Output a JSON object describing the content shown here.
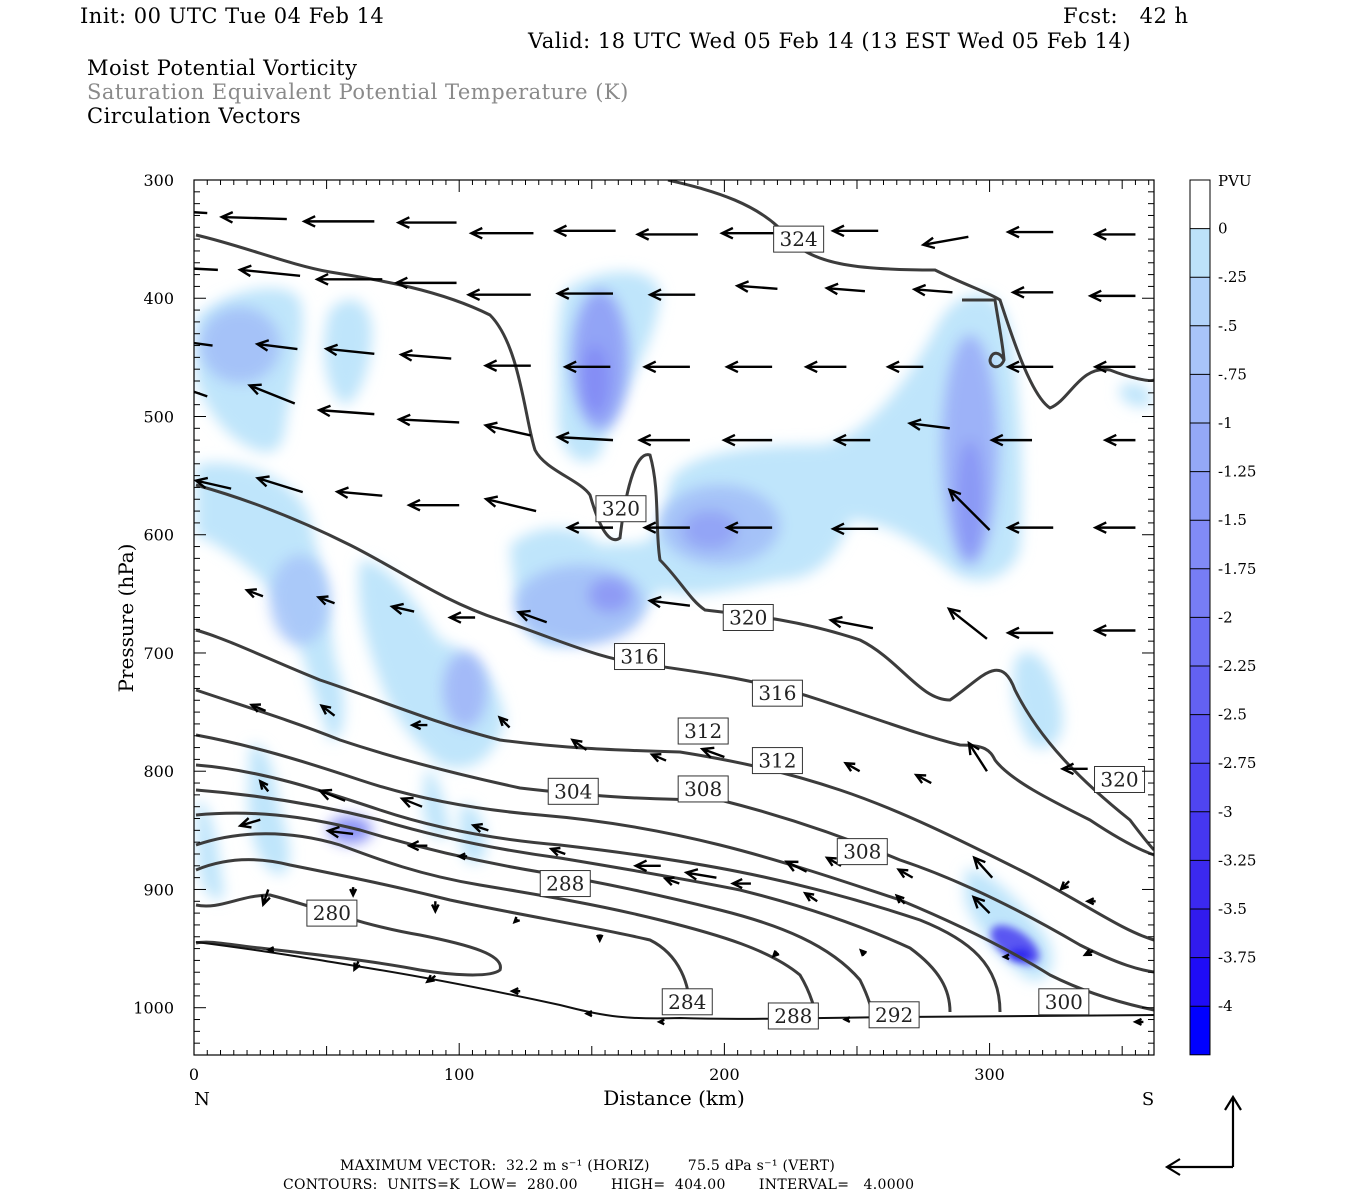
{
  "header": {
    "init": "Init: 00 UTC Tue 04 Feb 14",
    "fcst": "Fcst:   42 h",
    "valid": "Valid: 18 UTC Wed 05 Feb 14 (13 EST Wed 05 Feb 14)",
    "field1": "Moist Potential Vorticity",
    "field2": "Saturation Equivalent Potential Temperature (K)",
    "field3": "Circulation Vectors"
  },
  "footer": {
    "line1": "MAXIMUM VECTOR:  32.2 m s⁻¹ (HORIZ)        75.5 dPa s⁻¹ (VERT)",
    "line2": "CONTOURS:  UNITS=K  LOW=  280.00       HIGH=  404.00       INTERVAL=   4.0000"
  },
  "chart_data": {
    "type": "contour",
    "title": "Moist Potential Vorticity",
    "xlabel": "Distance (km)",
    "ylabel": "Pressure (hPa)",
    "xlim": [
      0,
      362
    ],
    "ylim": [
      1040,
      300
    ],
    "x_ticks": [
      0,
      100,
      200,
      300
    ],
    "y_ticks": [
      300,
      400,
      500,
      600,
      700,
      800,
      900,
      1000
    ],
    "x_end_labels": {
      "left": "N",
      "right": "S"
    },
    "colorbar": {
      "unit": "PVU",
      "labels": [
        "0",
        "-.25",
        "-.5",
        "-.75",
        "-1",
        "-1.25",
        "-1.5",
        "-1.75",
        "-2",
        "-2.25",
        "-2.5",
        "-2.75",
        "-3",
        "-3.25",
        "-3.5",
        "-3.75",
        "-4"
      ],
      "colors": [
        "#ffffff",
        "#bde3fa",
        "#b2d3fa",
        "#a8c4f9",
        "#9eb6f8",
        "#94a8f7",
        "#8a9af6",
        "#818bf6",
        "#777df5",
        "#6d6ff4",
        "#6361f3",
        "#5953f2",
        "#4f45f1",
        "#4537f0",
        "#3b29ef",
        "#311bee",
        "#1f0cf7",
        "#0000ff"
      ]
    },
    "contour_labels": [
      {
        "text": "324",
        "x": 228,
        "p": 350
      },
      {
        "text": "320",
        "x": 161,
        "p": 578
      },
      {
        "text": "320",
        "x": 209,
        "p": 670
      },
      {
        "text": "320",
        "x": 349,
        "p": 807
      },
      {
        "text": "316",
        "x": 168,
        "p": 703
      },
      {
        "text": "316",
        "x": 220,
        "p": 734
      },
      {
        "text": "312",
        "x": 192,
        "p": 766
      },
      {
        "text": "312",
        "x": 220,
        "p": 791
      },
      {
        "text": "308",
        "x": 192,
        "p": 815
      },
      {
        "text": "308",
        "x": 252,
        "p": 868
      },
      {
        "text": "304",
        "x": 143,
        "p": 817
      },
      {
        "text": "300",
        "x": 328,
        "p": 995
      },
      {
        "text": "288",
        "x": 140,
        "p": 895
      },
      {
        "text": "288",
        "x": 226,
        "p": 1007
      },
      {
        "text": "284",
        "x": 186,
        "p": 995
      },
      {
        "text": "280",
        "x": 52,
        "p": 920
      },
      {
        "text": "292",
        "x": 264,
        "p": 1006
      }
    ]
  },
  "cross": {
    "maxvec_horiz": "32.2 m s⁻¹",
    "maxvec_vert": "75.5 dPa s⁻¹"
  }
}
